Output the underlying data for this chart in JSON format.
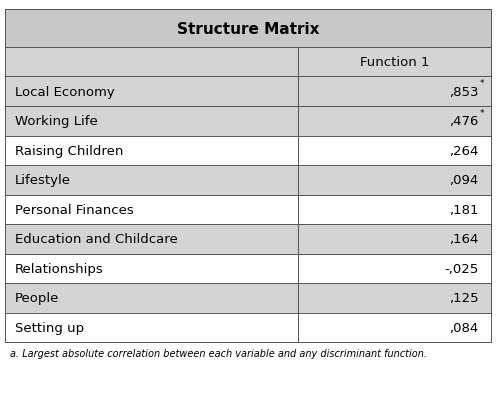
{
  "title": "Structure Matrix",
  "col_header": "Function 1",
  "rows": [
    {
      "label": "Local Economy",
      "value": ",853",
      "superscript": "*",
      "bg": "#d4d4d4"
    },
    {
      "label": "Working Life",
      "value": ",476",
      "superscript": "*",
      "bg": "#d4d4d4"
    },
    {
      "label": "Raising Children",
      "value": ",264",
      "superscript": "",
      "bg": "#ffffff"
    },
    {
      "label": "Lifestyle",
      "value": ",094",
      "superscript": "",
      "bg": "#d4d4d4"
    },
    {
      "label": "Personal Finances",
      "value": ",181",
      "superscript": "",
      "bg": "#ffffff"
    },
    {
      "label": "Education and Childcare",
      "value": ",164",
      "superscript": "",
      "bg": "#d4d4d4"
    },
    {
      "label": "Relationships",
      "value": "-,025",
      "superscript": "",
      "bg": "#ffffff"
    },
    {
      "label": "People",
      "value": ",125",
      "superscript": "",
      "bg": "#d4d4d4"
    },
    {
      "label": "Setting up",
      "value": ",084",
      "superscript": "",
      "bg": "#ffffff"
    }
  ],
  "title_bg": "#c8c8c8",
  "header_bg": "#d4d4d4",
  "border_color": "#555555",
  "title_fontsize": 11,
  "header_fontsize": 9.5,
  "cell_fontsize": 9.5,
  "note_text": "a. Largest absolute correlation between each variable and any discriminant function.",
  "note_fontsize": 7.0,
  "col_split": 0.6
}
